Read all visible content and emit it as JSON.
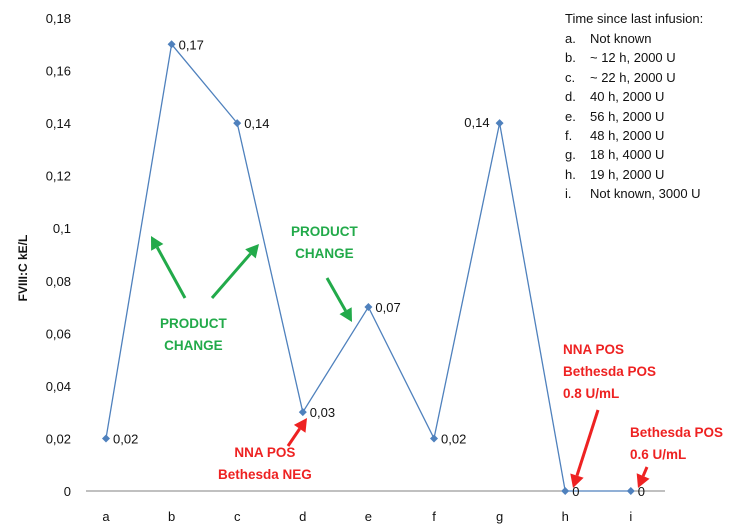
{
  "chart_data": {
    "type": "line",
    "categories": [
      "a",
      "b",
      "c",
      "d",
      "e",
      "f",
      "g",
      "h",
      "i"
    ],
    "values": [
      0.02,
      0.17,
      0.14,
      0.03,
      0.07,
      0.02,
      0.14,
      0,
      0
    ],
    "data_labels": [
      "0,02",
      "0,17",
      "0,14",
      "0,03",
      "0,07",
      "0,02",
      "0,14",
      "0",
      "0"
    ],
    "ylabel": "FVIII:C kE/L",
    "ylim": [
      0,
      0.18
    ],
    "yticks": [
      "0",
      "0,02",
      "0,04",
      "0,06",
      "0,08",
      "0,1",
      "0,12",
      "0,14",
      "0,16",
      "0,18"
    ],
    "grid": false,
    "series_color": "#4f81bd",
    "legend": {
      "title": "Time since last infusion:",
      "items": [
        {
          "letter": "a.",
          "text": "Not known"
        },
        {
          "letter": "b.",
          "text": "~ 12 h, 2000 U"
        },
        {
          "letter": "c.",
          "text": "~ 22 h, 2000 U"
        },
        {
          "letter": "d.",
          "text": "40 h, 2000 U"
        },
        {
          "letter": "e.",
          "text": "56 h, 2000 U"
        },
        {
          "letter": "f.",
          "text": "48 h, 2000 U"
        },
        {
          "letter": "g.",
          "text": "18 h, 4000 U"
        },
        {
          "letter": "h.",
          "text": "19 h, 2000 U"
        },
        {
          "letter": "i.",
          "text": "Not known, 3000 U"
        }
      ]
    },
    "annotations": {
      "product_change_1": [
        "PRODUCT",
        "CHANGE"
      ],
      "product_change_2": [
        "PRODUCT",
        "CHANGE"
      ],
      "d_result": [
        "NNA POS",
        "Bethesda NEG"
      ],
      "h_result": [
        "NNA POS",
        "Bethesda POS",
        "0.8 U/mL"
      ],
      "i_result": [
        "Bethesda POS",
        "0.6 U/mL"
      ]
    },
    "colors": {
      "green": "#22aa4a",
      "red": "#ee2222"
    }
  }
}
